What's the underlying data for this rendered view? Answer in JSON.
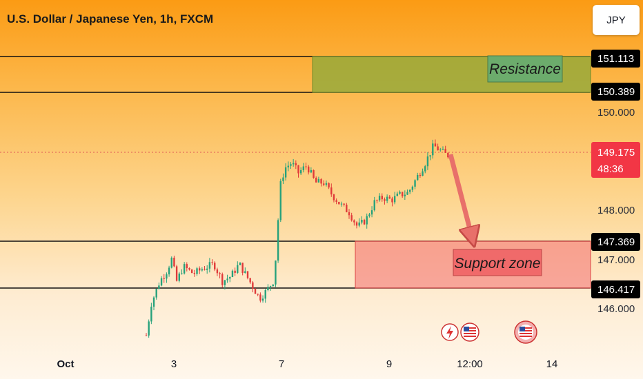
{
  "title": "U.S. Dollar / Japanese Yen, 1h, FXCM",
  "currency_button": "JPY",
  "chart_data": {
    "type": "candlestick",
    "symbol": "USDJPY",
    "interval": "1h",
    "source": "FXCM",
    "y_axis_ticks": [
      "150.000",
      "148.000",
      "147.000",
      "146.000"
    ],
    "x_axis_ticks": [
      "Oct",
      "3",
      "7",
      "9",
      "12:00",
      "14"
    ],
    "ylim": [
      145.4,
      151.3
    ],
    "levels": [
      {
        "label": "151.113",
        "value": 151.113
      },
      {
        "label": "150.389",
        "value": 150.389
      },
      {
        "label": "147.369",
        "value": 147.369
      },
      {
        "label": "146.417",
        "value": 146.417
      }
    ],
    "current_price": {
      "label": "149.175",
      "value": 149.175,
      "countdown": "48:36"
    },
    "zones": [
      {
        "label": "Resistance",
        "from": 150.389,
        "to": 151.113,
        "color": "#8ba83a"
      },
      {
        "label": "Support zone",
        "from": 146.417,
        "to": 147.369,
        "color": "#f47878"
      }
    ],
    "price_path": [
      [
        0,
        145.5
      ],
      [
        3,
        146.15
      ],
      [
        8,
        146.6
      ],
      [
        12,
        146.8
      ],
      [
        15,
        147.05
      ],
      [
        18,
        146.6
      ],
      [
        22,
        146.9
      ],
      [
        28,
        146.75
      ],
      [
        33,
        146.85
      ],
      [
        40,
        146.95
      ],
      [
        45,
        146.6
      ],
      [
        50,
        146.7
      ],
      [
        55,
        146.95
      ],
      [
        62,
        146.55
      ],
      [
        67,
        146.25
      ],
      [
        71,
        146.4
      ],
      [
        75,
        146.6
      ],
      [
        77,
        147.2
      ],
      [
        79,
        148.5
      ],
      [
        82,
        148.9
      ],
      [
        86,
        149.0
      ],
      [
        90,
        148.8
      ],
      [
        95,
        148.95
      ],
      [
        100,
        148.6
      ],
      [
        105,
        148.6
      ],
      [
        110,
        148.35
      ],
      [
        115,
        148.15
      ],
      [
        120,
        148.0
      ],
      [
        125,
        147.7
      ],
      [
        130,
        147.85
      ],
      [
        135,
        148.2
      ],
      [
        140,
        148.3
      ],
      [
        145,
        148.25
      ],
      [
        150,
        148.35
      ],
      [
        155,
        148.4
      ],
      [
        160,
        148.7
      ],
      [
        165,
        149.0
      ],
      [
        170,
        149.35
      ],
      [
        174,
        149.25
      ],
      [
        178,
        149.15
      ],
      [
        180,
        149.175
      ]
    ],
    "projection": {
      "from": 149.175,
      "to": 147.369
    }
  }
}
